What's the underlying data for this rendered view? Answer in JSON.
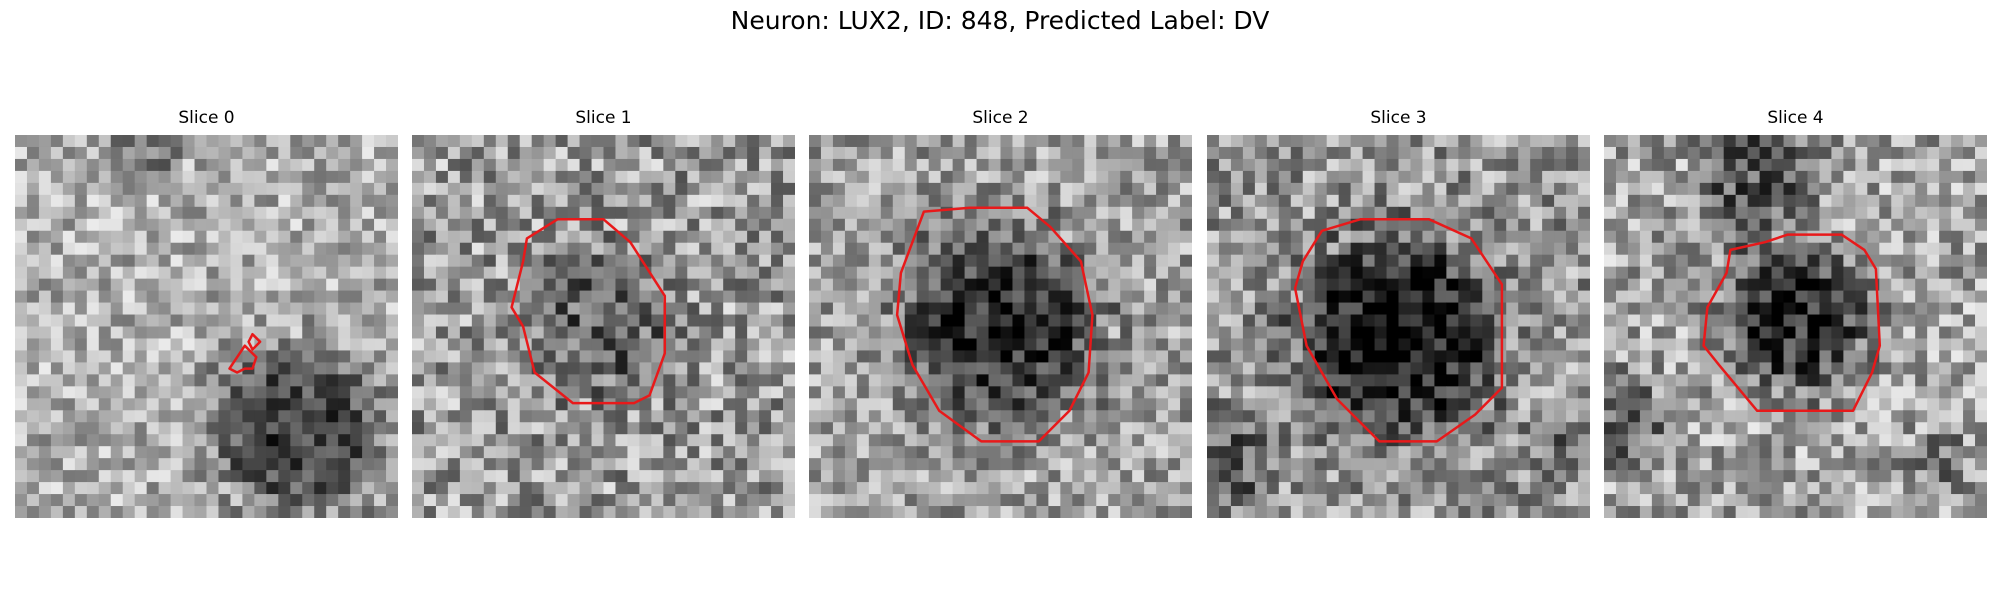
{
  "figure": {
    "suptitle": "Neuron: LUX2, ID: 848, Predicted Label: DV",
    "slices": [
      {
        "title": "Slice 0"
      },
      {
        "title": "Slice 1"
      },
      {
        "title": "Slice 2"
      },
      {
        "title": "Slice 3"
      },
      {
        "title": "Slice 4"
      }
    ],
    "contour_color": "#e8191a",
    "colormap": "gray"
  }
}
